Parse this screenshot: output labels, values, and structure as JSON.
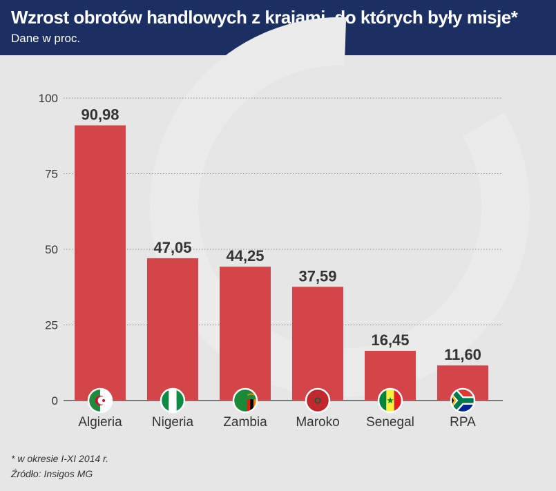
{
  "header": {
    "title": "Wzrost obrotów handlowych z krajami, do których były misje*",
    "subtitle": "Dane w proc."
  },
  "footer": {
    "note": "* w okresie I-XI 2014 r.",
    "source": "Źródło: Insigos MG"
  },
  "colors": {
    "bar": "#d4454a",
    "header_bg": "#1c2f63",
    "background": "#e6e6e6"
  },
  "chart_data": {
    "type": "bar",
    "title": "Wzrost obrotów handlowych z krajami, do których były misje*",
    "subtitle": "Dane w proc.",
    "categories": [
      "Algieria",
      "Nigeria",
      "Zambia",
      "Maroko",
      "Senegal",
      "RPA"
    ],
    "values": [
      90.98,
      47.05,
      44.25,
      37.59,
      16.45,
      11.6
    ],
    "value_labels": [
      "90,98",
      "47,05",
      "44,25",
      "37,59",
      "16,45",
      "11,60"
    ],
    "flags": [
      "algeria-flag-icon",
      "nigeria-flag-icon",
      "zambia-flag-icon",
      "morocco-flag-icon",
      "senegal-flag-icon",
      "south-africa-flag-icon"
    ],
    "yticks": [
      0,
      25,
      50,
      75,
      100
    ],
    "ylim": [
      0,
      100
    ],
    "grid": true,
    "legend": "none"
  }
}
